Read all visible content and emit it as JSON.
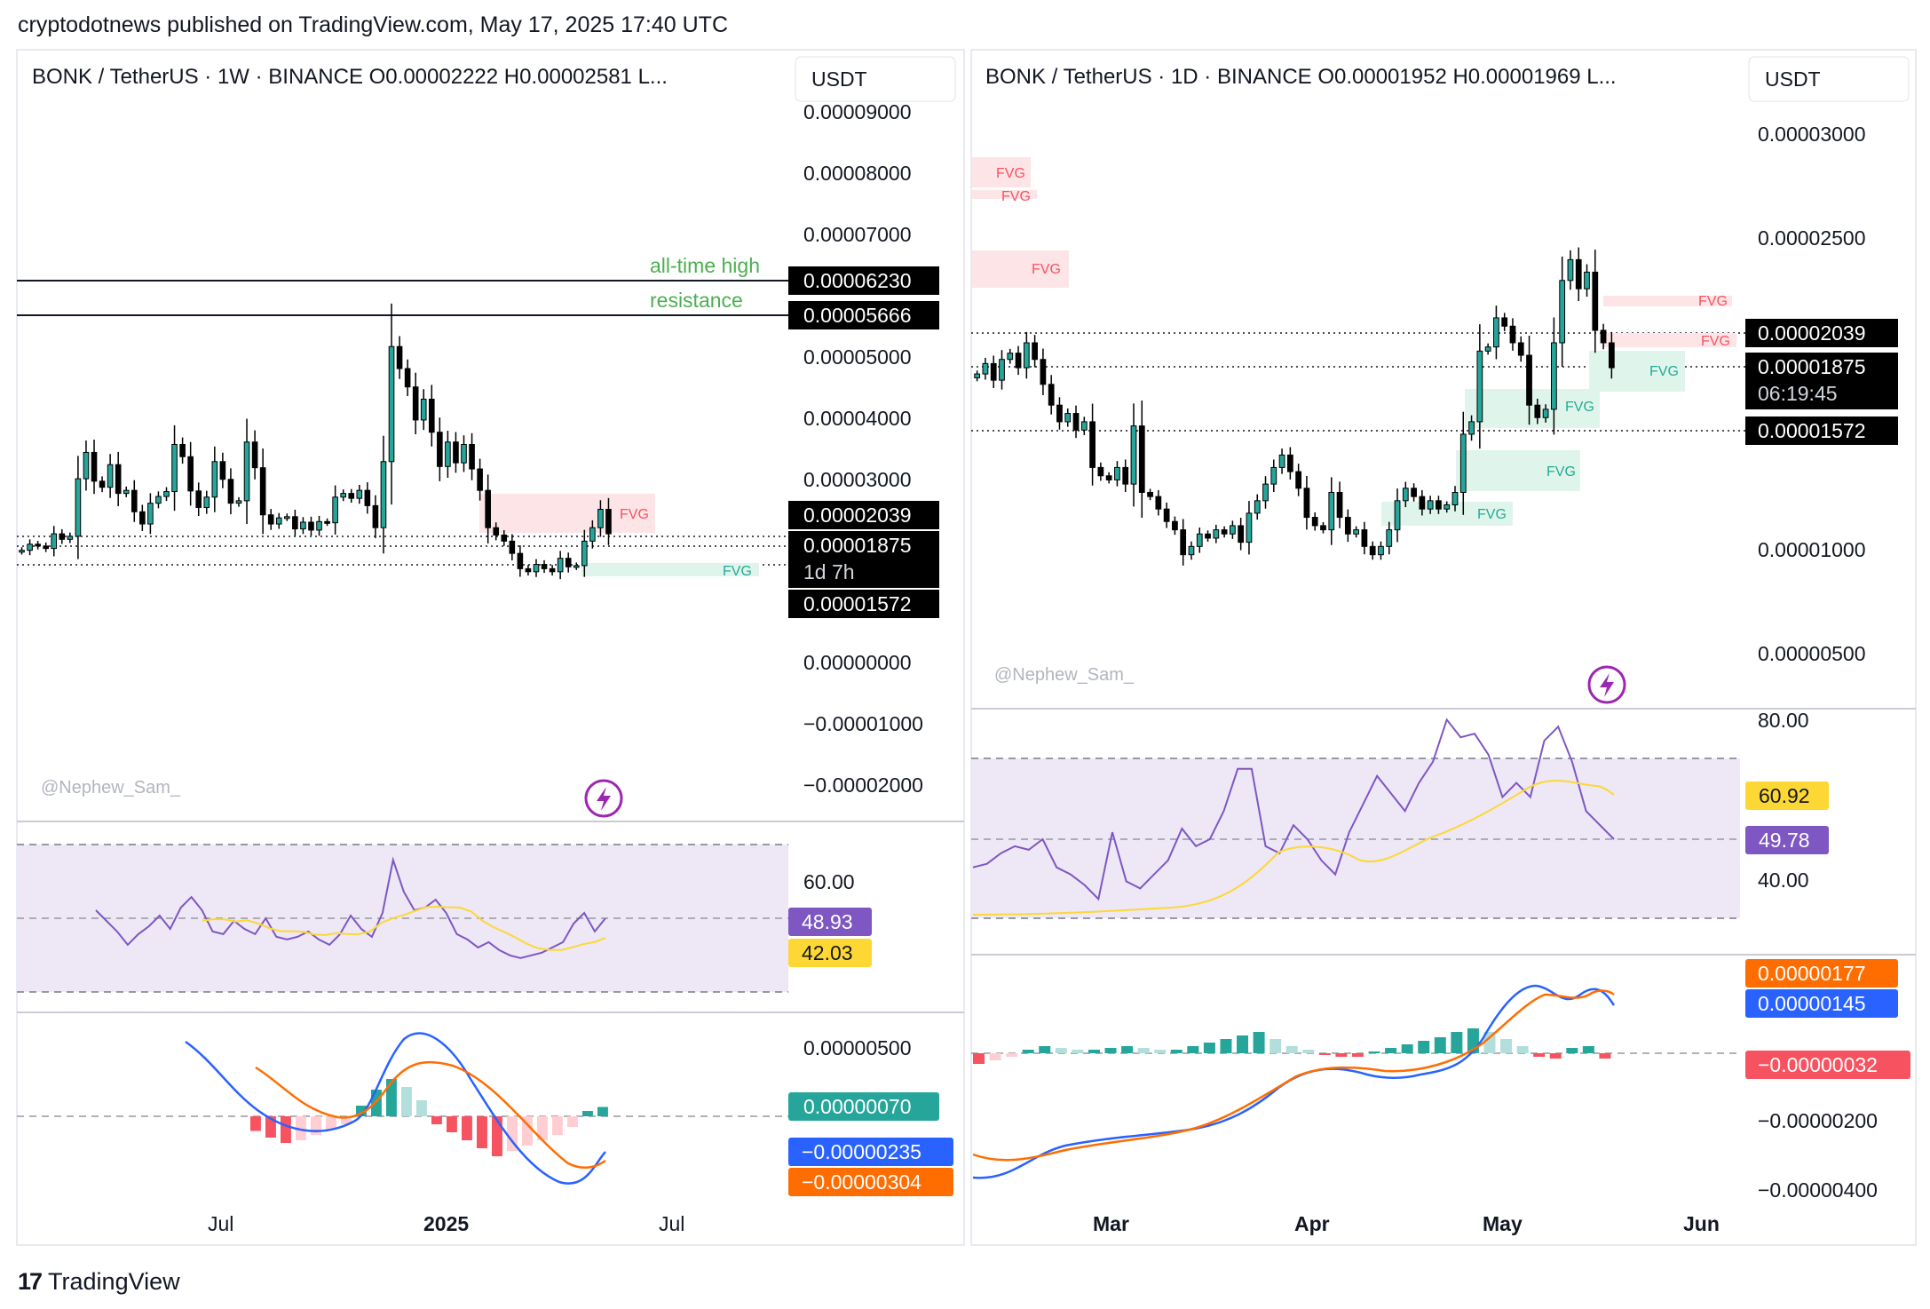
{
  "publisher": "cryptodotnews published on TradingView.com, May 17, 2025 17:40 UTC",
  "brand": "TradingView",
  "colors": {
    "up": "#26a69a",
    "down": "#000000",
    "rsi": "#7e57c2",
    "rsi_ma": "#fdd835",
    "macd": "#2962ff",
    "signal": "#ff6d00",
    "fvg_bear": "#f7525f",
    "fvg_bull": "#22ab94",
    "rsi_band": "#ede7f6"
  },
  "left": {
    "header": "BONK / TetherUS · 1W · BINANCE   O0.00002222   H0.00002581   L...",
    "currency": "USDT",
    "watermark": "@Nephew_Sam_",
    "price_ticks": [
      "0.00009000",
      "0.00008000",
      "0.00007000",
      "0.00005000",
      "0.00004000",
      "0.00003000",
      "0.00000000",
      "−0.00001000",
      "−0.00002000"
    ],
    "line_labels": {
      "ath": "all-time high",
      "resistance": "resistance"
    },
    "price_labels": {
      "ath": "0.00006230",
      "resistance": "0.00005666",
      "p1": "0.00002039",
      "p2": "0.00001875",
      "countdown": "1d 7h",
      "p3": "0.00001572"
    },
    "fvg_label": "FVG",
    "rsi_tick": "60.00",
    "rsi_values": {
      "rsi": "48.93",
      "ma": "42.03"
    },
    "macd_tick": "0.00000500",
    "macd_values": {
      "hist": "0.00000070",
      "macd": "−0.00000235",
      "signal": "−0.00000304"
    },
    "time_ticks": [
      "Jul",
      "2025",
      "Jul"
    ]
  },
  "right": {
    "header": "BONK / TetherUS · 1D · BINANCE   O0.00001952   H0.00001969   L...",
    "currency": "USDT",
    "watermark": "@Nephew_Sam_",
    "price_ticks": [
      "0.00003000",
      "0.00002500",
      "0.00001000",
      "0.00000500"
    ],
    "price_labels": {
      "p1": "0.00002039",
      "p2": "0.00001875",
      "countdown": "06:19:45",
      "p3": "0.00001572"
    },
    "fvg_label": "FVG",
    "rsi_ticks": [
      "80.00",
      "40.00"
    ],
    "rsi_values": {
      "ma": "60.92",
      "rsi": "49.78"
    },
    "macd_ticks": [
      "−0.00000200",
      "−0.00000400"
    ],
    "macd_values": {
      "signal": "0.00000177",
      "macd": "0.00000145",
      "hist": "−0.00000032"
    },
    "time_ticks": [
      "Mar",
      "Apr",
      "May",
      "Jun"
    ]
  },
  "chart_data": [
    {
      "type": "candlestick",
      "title": "BONK / TetherUS · 1W · BINANCE",
      "ylim": [
        -2e-05,
        9e-05
      ],
      "close": [
        1.85e-05,
        1.95e-05,
        1.92e-05,
        1.88e-05,
        2.12e-05,
        2.03e-05,
        2.08e-05,
        3.02e-05,
        3.45e-05,
        2.98e-05,
        2.88e-05,
        3.25e-05,
        2.78e-05,
        2.83e-05,
        2.48e-05,
        2.28e-05,
        2.62e-05,
        2.73e-05,
        2.81e-05,
        3.58e-05,
        3.38e-05,
        2.82e-05,
        2.55e-05,
        2.72e-05,
        3.3e-05,
        3.01e-05,
        2.62e-05,
        2.66e-05,
        3.62e-05,
        3.2e-05,
        2.43e-05,
        2.28e-05,
        2.38e-05,
        2.4e-05,
        2.2e-05,
        2.31e-05,
        2.18e-05,
        2.32e-05,
        2.3e-05,
        2.72e-05,
        2.78e-05,
        2.7e-05,
        2.83e-05,
        2.58e-05,
        2.22e-05,
        3.3e-05,
        5.18e-05,
        4.82e-05,
        4.52e-05,
        3.98e-05,
        4.32e-05,
        3.78e-05,
        3.22e-05,
        3.62e-05,
        3.28e-05,
        3.58e-05,
        3.18e-05,
        2.83e-05,
        2.22e-05,
        2.1e-05,
        2e-05,
        1.8e-05,
        1.55e-05,
        1.5e-05,
        1.62e-05,
        1.55e-05,
        1.5e-05,
        1.72e-05,
        1.58e-05,
        1.6e-05,
        2e-05,
        2.22e-05,
        2.52e-05,
        2.12e-05
      ],
      "rsi": [
        53,
        49,
        45,
        40,
        44,
        47,
        51,
        46,
        54,
        58,
        53,
        45,
        44,
        49,
        46,
        44,
        50,
        43,
        42,
        43,
        45,
        42,
        40,
        44,
        51,
        46,
        43,
        52,
        72,
        60,
        53,
        54,
        57,
        52,
        44,
        42,
        39,
        41,
        38,
        36,
        35,
        36,
        37,
        39,
        41,
        48,
        52,
        45,
        50
      ],
      "macd_hist": [
        -1.1e-06,
        -1.6e-06,
        -2e-06,
        -1.8e-06,
        -1.4e-06,
        -1e-06,
        -6e-07,
        8e-07,
        2e-06,
        2.8e-06,
        2.2e-06,
        1.2e-06,
        -6e-07,
        -1.2e-06,
        -1.8e-06,
        -2.4e-06,
        -3e-06,
        -2.6e-06,
        -2.2e-06,
        -1.8e-06,
        -1.4e-06,
        -8e-07,
        4e-07,
        7e-07
      ]
    },
    {
      "type": "candlestick",
      "title": "BONK / TetherUS · 1D · BINANCE",
      "ylim": [
        5e-06,
        3e-05
      ],
      "close": [
        1.85e-05,
        1.9e-05,
        1.82e-05,
        1.92e-05,
        1.95e-05,
        1.88e-05,
        2e-05,
        1.92e-05,
        1.8e-05,
        1.7e-05,
        1.62e-05,
        1.66e-05,
        1.58e-05,
        1.62e-05,
        1.4e-05,
        1.36e-05,
        1.34e-05,
        1.4e-05,
        1.32e-05,
        1.6e-05,
        1.28e-05,
        1.26e-05,
        1.2e-05,
        1.14e-05,
        1.1e-05,
        9.8e-06,
        1.02e-05,
        1.08e-05,
        1.06e-05,
        1.1e-05,
        1.08e-05,
        1.12e-05,
        1.04e-05,
        1.18e-05,
        1.24e-05,
        1.32e-05,
        1.4e-05,
        1.46e-05,
        1.38e-05,
        1.3e-05,
        1.16e-05,
        1.12e-05,
        1.1e-05,
        1.28e-05,
        1.16e-05,
        1.08e-05,
        1.1e-05,
        1.02e-05,
        9.8e-06,
        1.02e-05,
        1.1e-05,
        1.24e-05,
        1.3e-05,
        1.26e-05,
        1.2e-05,
        1.24e-05,
        1.2e-05,
        1.22e-05,
        1.28e-05,
        1.56e-05,
        1.62e-05,
        1.96e-05,
        1.98e-05,
        2.12e-05,
        2.08e-05,
        2e-05,
        1.94e-05,
        1.7e-05,
        1.64e-05,
        1.68e-05,
        2e-05,
        2.3e-05,
        2.4e-05,
        2.26e-05,
        2.34e-05,
        2.06e-05,
        2e-05,
        1.88e-05
      ],
      "rsi": [
        42,
        43,
        46,
        48,
        47,
        50,
        42,
        40,
        37,
        33,
        52,
        38,
        36,
        40,
        44,
        53,
        48,
        50,
        58,
        70,
        70,
        48,
        46,
        54,
        50,
        44,
        40,
        52,
        60,
        68,
        63,
        58,
        66,
        72,
        84,
        79,
        80,
        74,
        62,
        66,
        62,
        78,
        82,
        72,
        58,
        54,
        50
      ],
      "macd_hist": [
        -6e-07,
        -4e-07,
        -2e-07,
        2e-07,
        4e-07,
        3e-07,
        2e-07,
        2e-07,
        3e-07,
        4e-07,
        3e-07,
        2e-07,
        2e-07,
        4e-07,
        6e-07,
        8e-07,
        1e-06,
        1.2e-06,
        8e-07,
        4e-07,
        2e-07,
        -1e-07,
        -2e-07,
        -2e-07,
        1e-07,
        3e-07,
        5e-07,
        7e-07,
        9e-07,
        1.2e-06,
        1.4e-06,
        1.2e-06,
        8e-07,
        4e-07,
        -2e-07,
        -3e-07,
        3e-07,
        4e-07,
        -3e-07
      ]
    }
  ]
}
